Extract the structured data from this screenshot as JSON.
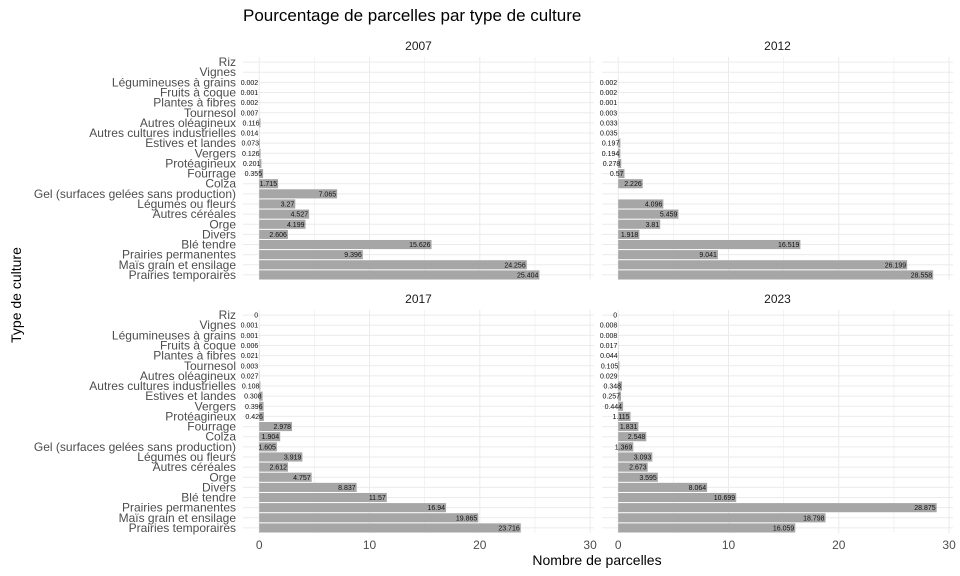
{
  "chart_data": {
    "type": "bar",
    "orientation": "horizontal",
    "title": "Pourcentage de parcelles par type de culture",
    "xlabel": "Nombre de parcelles",
    "ylabel": "Type de culture",
    "xlim": [
      0,
      30
    ],
    "x_ticks": [
      "0",
      "10",
      "20",
      "30"
    ],
    "grid": true,
    "bar_color": "#a6a6a6",
    "grid_color": "#ebebeb",
    "categories": [
      "Prairies temporaires",
      "Maïs grain et ensilage",
      "Prairies permanentes",
      "Blé tendre",
      "Divers",
      "Orge",
      "Autres céréales",
      "Légumes ou fleurs",
      "Gel (surfaces gelées sans production)",
      "Colza",
      "Fourrage",
      "Protéagineux",
      "Vergers",
      "Estives et landes",
      "Autres cultures industrielles",
      "Autres oléagineux",
      "Tournesol",
      "Plantes à fibres",
      "Fruits à coque",
      "Légumineuses à grains",
      "Vignes",
      "Riz"
    ],
    "panels": [
      {
        "name": "2007",
        "values": [
          25.404,
          24.256,
          9.396,
          15.626,
          2.606,
          4.199,
          4.527,
          3.27,
          7.065,
          1.715,
          0.355,
          0.201,
          0.126,
          0.073,
          0.014,
          0.116,
          0.007,
          0.002,
          0.001,
          0.002,
          null,
          null
        ],
        "labels": [
          "25.404",
          "24.256",
          "9.396",
          "15.626",
          "2.606",
          "4.199",
          "4.527",
          "3.27",
          "7.065",
          "1.715",
          "0.355",
          "0.201",
          "0.126",
          "0.073",
          "0.014",
          "0.116",
          "0.007",
          "0.002",
          "0.001",
          "0.002",
          "",
          ""
        ]
      },
      {
        "name": "2012",
        "values": [
          28.558,
          26.199,
          9.041,
          16.519,
          1.918,
          3.81,
          5.459,
          4.096,
          null,
          2.226,
          0.57,
          0.278,
          0.194,
          0.197,
          0.035,
          0.033,
          0.003,
          0.001,
          0.002,
          0.002,
          null,
          null
        ],
        "labels": [
          "28.558",
          "26.199",
          "9.041",
          "16.519",
          "1.918",
          "3.81",
          "5.459",
          "4.096",
          "",
          "2.226",
          "0.57",
          "0.278",
          "0.194",
          "0.197",
          "0.035",
          "0.033",
          "0.003",
          "0.001",
          "0.002",
          "0.002",
          "",
          ""
        ]
      },
      {
        "name": "2017",
        "values": [
          23.716,
          19.865,
          16.94,
          11.57,
          8.837,
          4.757,
          2.612,
          3.919,
          1.605,
          1.904,
          2.978,
          0.426,
          0.396,
          0.308,
          0.108,
          0.027,
          0.003,
          0.021,
          0.006,
          0.001,
          0.001,
          0
        ],
        "labels": [
          "23.716",
          "19.865",
          "16.94",
          "11.57",
          "8.837",
          "4.757",
          "2.612",
          "3.919",
          "1.605",
          "1.904",
          "2.978",
          "0.426",
          "0.396",
          "0.308",
          "0.108",
          "0.027",
          "0.003",
          "0.021",
          "0.006",
          "0.001",
          "0.001",
          "0"
        ]
      },
      {
        "name": "2023",
        "values": [
          16.059,
          18.798,
          28.875,
          10.699,
          8.064,
          3.595,
          2.673,
          3.093,
          1.369,
          2.548,
          1.831,
          1.115,
          0.444,
          0.257,
          0.348,
          0.029,
          0.105,
          0.044,
          0.017,
          0.008,
          0.008,
          0
        ],
        "labels": [
          "16.059",
          "18.798",
          "28.875",
          "10.699",
          "8.064",
          "3.595",
          "2.673",
          "3.093",
          "1.369",
          "2.548",
          "1.831",
          "1.115",
          "0.444",
          "0.257",
          "0.348",
          "0.029",
          "0.105",
          "0.044",
          "0.017",
          "0.008",
          "0.008",
          "0"
        ]
      }
    ]
  }
}
